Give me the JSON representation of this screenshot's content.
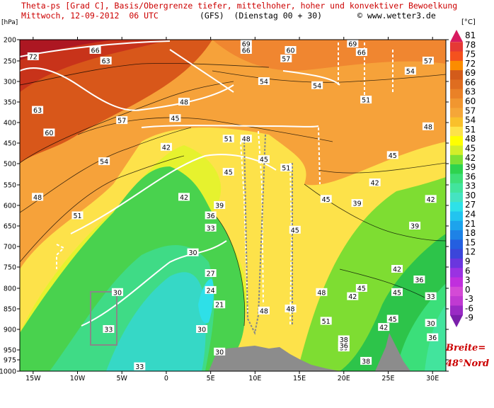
{
  "header": {
    "line1": "Theta-ps [Grad C], Basis/Obergrenze tiefer, mittelhoher, hoher und konvektiver Bewoelkung",
    "line2_left": "Mittwoch, 12-09-2012  06 UTC",
    "line2_mid": "(GFS)  (Dienstag 00 + 30)",
    "line2_right": "© www.wetter3.de"
  },
  "latitude": {
    "line1": "Breite=",
    "line2": "48°Nord"
  },
  "chart_data": {
    "type": "heatmap",
    "title": "Theta-ps [Grad C], Basis/Obergrenze tiefer, mittelhoher, hoher und konvektiver Bewoelkung",
    "yunit": "[hPa]",
    "colorbar_unit": "[°C]",
    "x_ticks": [
      "15W",
      "10W",
      "5W",
      "0",
      "5E",
      "10E",
      "15E",
      "20E",
      "25E",
      "30E"
    ],
    "x_values": [
      -15,
      -10,
      -5,
      0,
      5,
      10,
      15,
      20,
      25,
      30
    ],
    "xlim": [
      -16.5,
      31.5
    ],
    "y_ticks": [
      200,
      250,
      300,
      350,
      400,
      450,
      500,
      550,
      600,
      650,
      700,
      750,
      800,
      850,
      900,
      950,
      975,
      1000
    ],
    "ylim": [
      1000,
      200
    ],
    "colorbar": {
      "labels": [
        "81",
        "78",
        "75",
        "72",
        "69",
        "66",
        "63",
        "60",
        "57",
        "54",
        "51",
        "48",
        "45",
        "42",
        "39",
        "36",
        "33",
        "30",
        "27",
        "24",
        "21",
        "18",
        "15",
        "12",
        "9",
        "6",
        "3",
        "0",
        "-3",
        "-6",
        "-9"
      ],
      "colors": [
        "#d81b60",
        "#e53935",
        "#f4511e",
        "#fb8c00",
        "#d35b1a",
        "#df6d20",
        "#ea8127",
        "#f19630",
        "#f5a638",
        "#f9c02b",
        "#fde34a",
        "#ffff00",
        "#d3ee29",
        "#7ee034",
        "#2ed34e",
        "#3edf78",
        "#42e49d",
        "#45e3c1",
        "#2ee1e8",
        "#22c4ef",
        "#1da3ec",
        "#1e82e6",
        "#245fe0",
        "#3b46da",
        "#6a36de",
        "#9a32e2",
        "#c02fdd",
        "#d44ad6",
        "#c03ad2",
        "#9a2ac4",
        "#7a1faa"
      ]
    },
    "contour_labels": [
      {
        "v": "72",
        "x": -15,
        "p": 240
      },
      {
        "v": "66",
        "x": -8,
        "p": 225
      },
      {
        "v": "63",
        "x": -6.8,
        "p": 250
      },
      {
        "v": "63",
        "x": -14.5,
        "p": 370
      },
      {
        "v": "60",
        "x": -13.2,
        "p": 425
      },
      {
        "v": "57",
        "x": -5,
        "p": 395
      },
      {
        "v": "54",
        "x": -7,
        "p": 495
      },
      {
        "v": "48",
        "x": -14.5,
        "p": 580
      },
      {
        "v": "51",
        "x": -10,
        "p": 625
      },
      {
        "v": "48",
        "x": 2,
        "p": 350
      },
      {
        "v": "45",
        "x": 1,
        "p": 390
      },
      {
        "v": "42",
        "x": 0,
        "p": 460
      },
      {
        "v": "42",
        "x": 2,
        "p": 580
      },
      {
        "v": "57",
        "x": 13.5,
        "p": 245
      },
      {
        "v": "54",
        "x": 11,
        "p": 300
      },
      {
        "v": "54",
        "x": 17,
        "p": 310
      },
      {
        "v": "51",
        "x": 22.5,
        "p": 345
      },
      {
        "v": "48",
        "x": 29.5,
        "p": 410
      },
      {
        "v": "51",
        "x": 7,
        "p": 440
      },
      {
        "v": "48",
        "x": 9,
        "p": 440
      },
      {
        "v": "45",
        "x": 7,
        "p": 520
      },
      {
        "v": "45",
        "x": 11,
        "p": 490
      },
      {
        "v": "51",
        "x": 13.5,
        "p": 510
      },
      {
        "v": "45",
        "x": 25.5,
        "p": 480
      },
      {
        "v": "42",
        "x": 23.5,
        "p": 545
      },
      {
        "v": "42",
        "x": 29.8,
        "p": 585
      },
      {
        "v": "45",
        "x": 18,
        "p": 585
      },
      {
        "v": "39",
        "x": 21.5,
        "p": 595
      },
      {
        "v": "39",
        "x": 28,
        "p": 650
      },
      {
        "v": "36",
        "x": 5,
        "p": 625
      },
      {
        "v": "33",
        "x": 5,
        "p": 655
      },
      {
        "v": "39",
        "x": 6,
        "p": 600
      },
      {
        "v": "30",
        "x": 3,
        "p": 715
      },
      {
        "v": "27",
        "x": 5,
        "p": 765
      },
      {
        "v": "24",
        "x": 5,
        "p": 805
      },
      {
        "v": "21",
        "x": 6,
        "p": 840
      },
      {
        "v": "30",
        "x": -5.5,
        "p": 810
      },
      {
        "v": "33",
        "x": -6.5,
        "p": 900
      },
      {
        "v": "30",
        "x": 4,
        "p": 900
      },
      {
        "v": "30",
        "x": 6,
        "p": 955
      },
      {
        "v": "33",
        "x": -3,
        "p": 990
      },
      {
        "v": "45",
        "x": 14.5,
        "p": 660
      },
      {
        "v": "48",
        "x": 11,
        "p": 855
      },
      {
        "v": "48",
        "x": 14,
        "p": 850
      },
      {
        "v": "51",
        "x": 18,
        "p": 880
      },
      {
        "v": "48",
        "x": 17.5,
        "p": 810
      },
      {
        "v": "42",
        "x": 21,
        "p": 820
      },
      {
        "v": "45",
        "x": 22,
        "p": 800
      },
      {
        "v": "42",
        "x": 26,
        "p": 755
      },
      {
        "v": "45",
        "x": 26,
        "p": 810
      },
      {
        "v": "36",
        "x": 28.5,
        "p": 780
      },
      {
        "v": "33",
        "x": 29.8,
        "p": 820
      },
      {
        "v": "30",
        "x": 29.8,
        "p": 885
      },
      {
        "v": "42",
        "x": 24.5,
        "p": 895
      },
      {
        "v": "45",
        "x": 25.5,
        "p": 875
      },
      {
        "v": "39",
        "x": 20,
        "p": 945
      },
      {
        "v": "36",
        "x": 20,
        "p": 940
      },
      {
        "v": "38",
        "x": 20,
        "p": 925
      },
      {
        "v": "38",
        "x": 22.5,
        "p": 978
      },
      {
        "v": "36",
        "x": 30,
        "p": 920
      },
      {
        "v": "69",
        "x": 21,
        "p": 210
      },
      {
        "v": "66",
        "x": 22,
        "p": 230
      },
      {
        "v": "57",
        "x": 29.5,
        "p": 250
      },
      {
        "v": "54",
        "x": 27.5,
        "p": 275
      },
      {
        "v": "66",
        "x": 9,
        "p": 225
      },
      {
        "v": "69",
        "x": 9,
        "p": 210
      },
      {
        "v": "60",
        "x": 14,
        "p": 225
      }
    ]
  }
}
